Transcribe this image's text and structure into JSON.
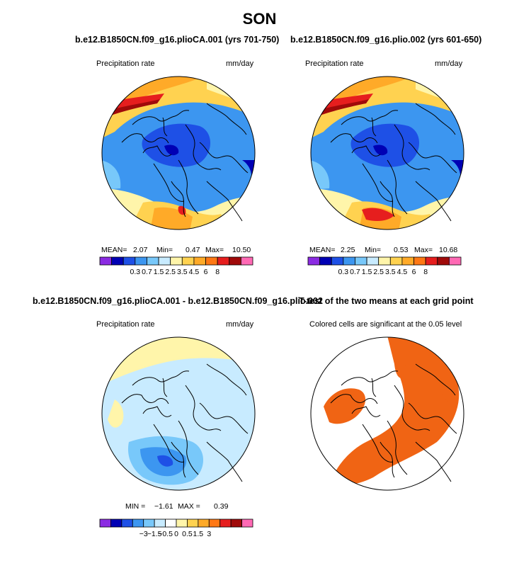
{
  "chart_data": {
    "type": "heatmap",
    "title": "SON",
    "panels": [
      {
        "id": "p1",
        "title": "b.e12.B1850CN.f09_g16.plioCA.001 (yrs 701-750)",
        "left_label": "Precipitation rate",
        "right_label": "mm/day",
        "stats": {
          "mean_label": "MEAN=",
          "mean": "2.07",
          "min_label": "Min=",
          "min": "0.47",
          "max_label": "Max=",
          "max": "10.50"
        },
        "colorbar": {
          "colors": [
            "#8B2BE2",
            "#0000B4",
            "#1E50E6",
            "#3C96F0",
            "#78C8FA",
            "#C8EBFF",
            "#FFF5AA",
            "#FFD250",
            "#FFAA28",
            "#FF7814",
            "#E61E1E",
            "#A00A0A",
            "#FF69B4"
          ],
          "ticks": [
            "0.3",
            "0.7",
            "1.5",
            "2.5",
            "3.5",
            "4.5",
            "6",
            "8"
          ]
        }
      },
      {
        "id": "p2",
        "title": "b.e12.B1850CN.f09_g16.plio.002 (yrs 601-650)",
        "left_label": "Precipitation rate",
        "right_label": "mm/day",
        "stats": {
          "mean_label": "MEAN=",
          "mean": "2.25",
          "min_label": "Min=",
          "min": "0.53",
          "max_label": "Max=",
          "max": "10.68"
        },
        "colorbar": {
          "colors": [
            "#8B2BE2",
            "#0000B4",
            "#1E50E6",
            "#3C96F0",
            "#78C8FA",
            "#C8EBFF",
            "#FFF5AA",
            "#FFD250",
            "#FFAA28",
            "#FF7814",
            "#E61E1E",
            "#A00A0A",
            "#FF69B4"
          ],
          "ticks": [
            "0.3",
            "0.7",
            "1.5",
            "2.5",
            "3.5",
            "4.5",
            "6",
            "8"
          ]
        }
      },
      {
        "id": "p3",
        "title": "b.e12.B1850CN.f09_g16.plioCA.001 - b.e12.B1850CN.f09_g16.plio.002",
        "left_label": "Precipitation rate",
        "right_label": "mm/day",
        "stats": {
          "min_label": "MIN =",
          "min": "−1.61",
          "max_label": "MAX =",
          "max": "0.39"
        },
        "colorbar": {
          "colors": [
            "#8B2BE2",
            "#0000B4",
            "#1E50E6",
            "#3C96F0",
            "#78C8FA",
            "#C8EBFF",
            "#FFFFFF",
            "#FFF5AA",
            "#FFD250",
            "#FFAA28",
            "#FF7814",
            "#E61E1E",
            "#A00A0A",
            "#FF69B4"
          ],
          "ticks": [
            "−3",
            "−1.5",
            "−0.5",
            "0",
            "0.5",
            "1.5",
            "3"
          ]
        }
      },
      {
        "id": "p4",
        "title": "T-test of the two means at each grid point",
        "left_label": "Colored cells are significant at the 0.05 level",
        "significant_color": "#F06414"
      }
    ]
  }
}
